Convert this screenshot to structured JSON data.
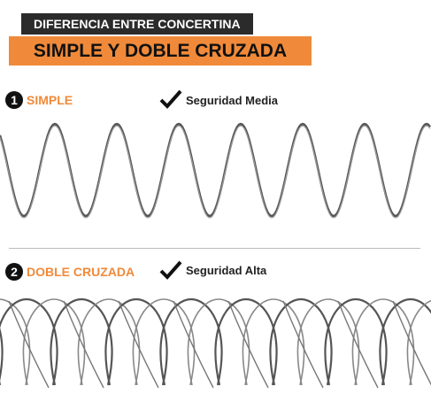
{
  "header": {
    "title": "DIFERENCIA ENTRE CONCERTINA",
    "subtitle": "SIMPLE Y DOBLE CRUZADA"
  },
  "sections": [
    {
      "number": "1",
      "label": "SIMPLE",
      "security": "Seguridad Media"
    },
    {
      "number": "2",
      "label": "DOBLE CRUZADA",
      "security": "Seguridad Alta"
    }
  ]
}
